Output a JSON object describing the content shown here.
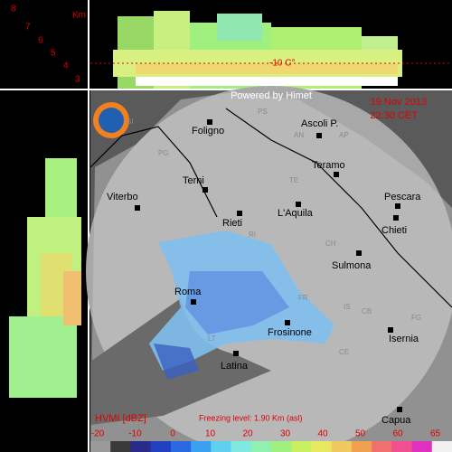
{
  "header": {
    "credit": "Powered by Himet",
    "date": "19 Nov 2013",
    "time": "22:30 CET"
  },
  "height_axis": {
    "unit": "Km",
    "levels": [
      "8",
      "7",
      "6",
      "5",
      "4",
      "3"
    ],
    "isotherm": "-10 C°"
  },
  "cities": [
    "Foligno",
    "Ascoli P.",
    "Teramo",
    "Terni",
    "Viterbo",
    "Pescara",
    "Rieti",
    "L'Aquila",
    "Chieti",
    "Sulmona",
    "Roma",
    "Frosinone",
    "Isernia",
    "Latina",
    "Capua"
  ],
  "provinces": [
    "SI",
    "PG",
    "PS",
    "AN",
    "AP",
    "TE",
    "RI",
    "CH",
    "FR",
    "IS",
    "CB",
    "CE",
    "LT",
    "FG"
  ],
  "footer": {
    "product": "HVMI [dBZ]",
    "freezing_level": "Freezing level: 1.90 Km (asl)"
  },
  "scale": {
    "labels": [
      "-20",
      "-10",
      "0",
      "10",
      "20",
      "30",
      "40",
      "50",
      "60",
      "65"
    ],
    "colors": [
      "#9a9a9a",
      "#3a3a3a",
      "#2a2a8a",
      "#2040c0",
      "#2a6ae0",
      "#3aa0f0",
      "#60d0f0",
      "#80e8e0",
      "#90f0b0",
      "#a0f080",
      "#c8f060",
      "#e8e860",
      "#f0c860",
      "#f0a050",
      "#f07070",
      "#f05090",
      "#e030c0",
      "#f0f0f0"
    ]
  }
}
